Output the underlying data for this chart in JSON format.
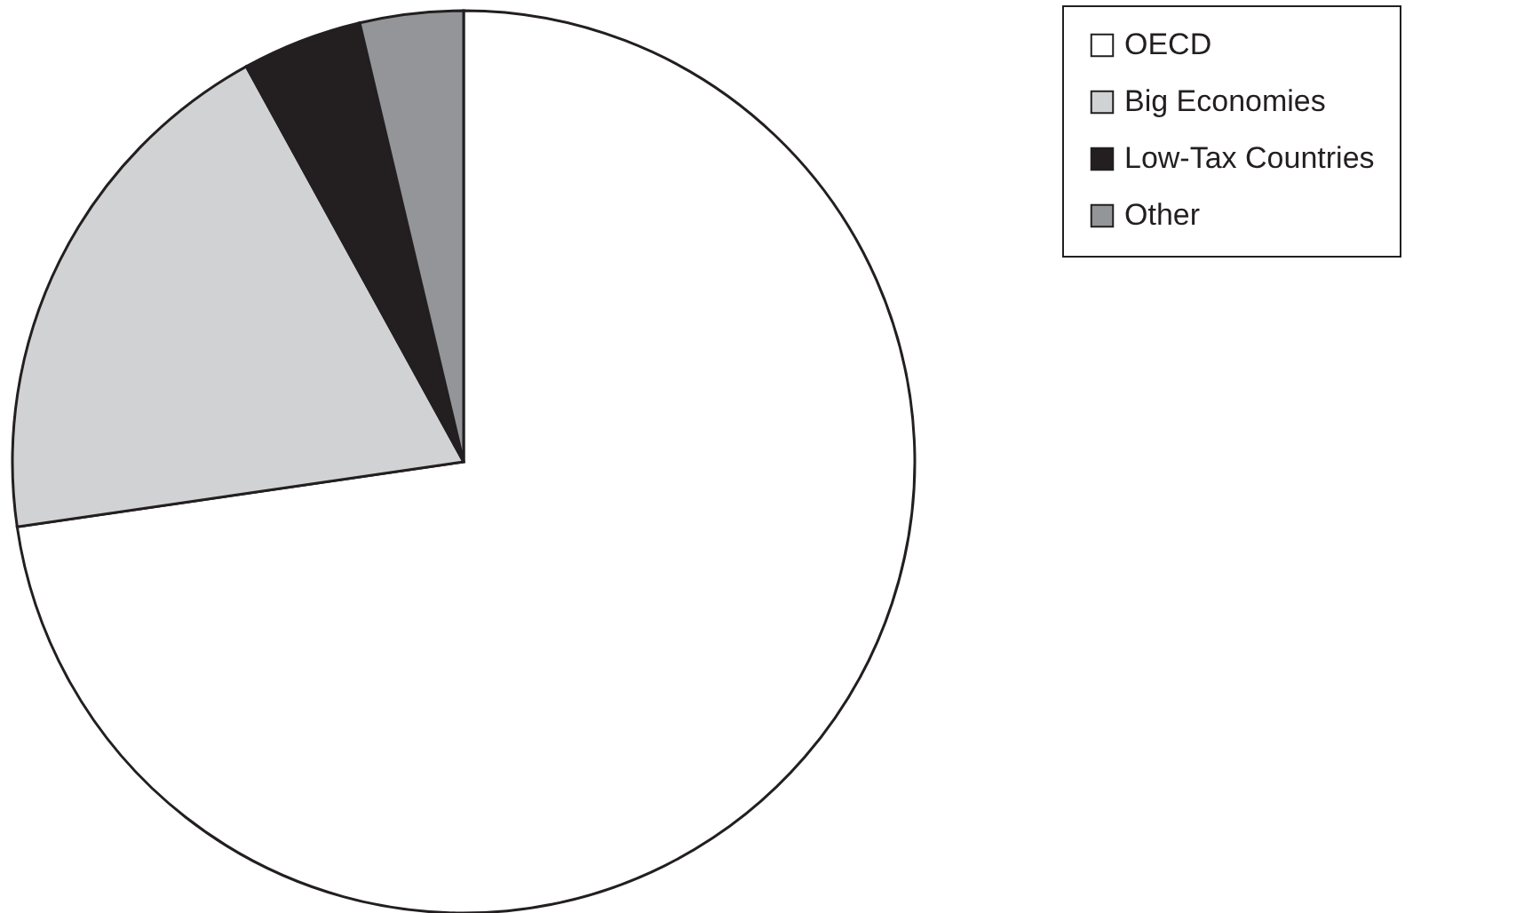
{
  "chart_data": {
    "type": "pie",
    "categories": [
      "OECD",
      "Big Economies",
      "Low-Tax Countries",
      "Other"
    ],
    "values": [
      72.7,
      19.3,
      4.3,
      3.7
    ],
    "colors": [
      "#ffffff",
      "#d1d2d4",
      "#231f20",
      "#939598"
    ],
    "legend": "right"
  }
}
